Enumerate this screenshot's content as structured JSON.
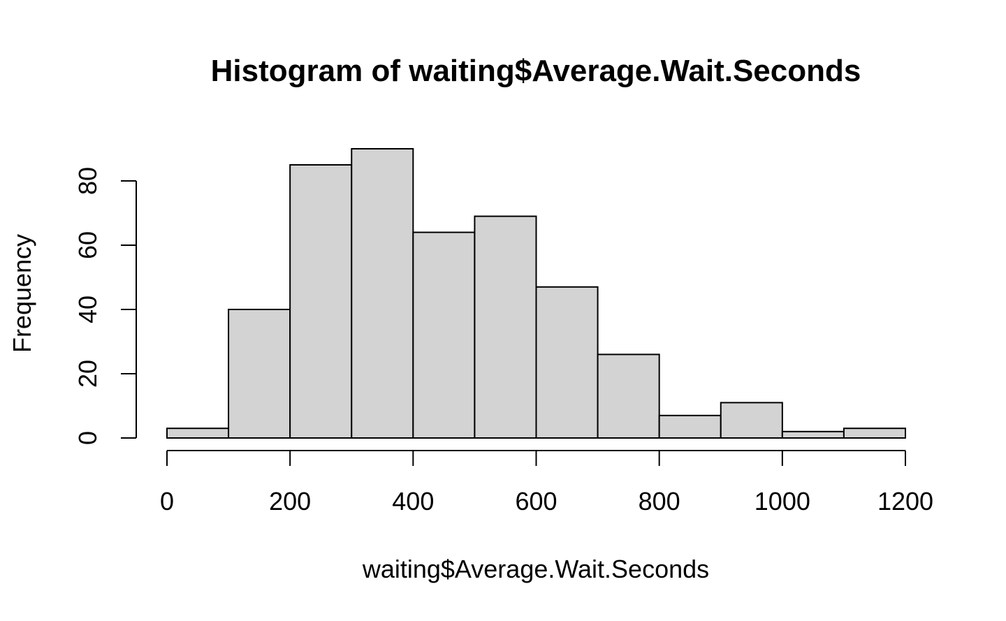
{
  "chart_data": {
    "type": "bar",
    "title": "Histogram of waiting$Average.Wait.Seconds",
    "xlabel": "waiting$Average.Wait.Seconds",
    "ylabel": "Frequency",
    "bins": [
      {
        "x0": 0,
        "x1": 100,
        "count": 3
      },
      {
        "x0": 100,
        "x1": 200,
        "count": 40
      },
      {
        "x0": 200,
        "x1": 300,
        "count": 85
      },
      {
        "x0": 300,
        "x1": 400,
        "count": 90
      },
      {
        "x0": 400,
        "x1": 500,
        "count": 64
      },
      {
        "x0": 500,
        "x1": 600,
        "count": 69
      },
      {
        "x0": 600,
        "x1": 700,
        "count": 47
      },
      {
        "x0": 700,
        "x1": 800,
        "count": 26
      },
      {
        "x0": 800,
        "x1": 900,
        "count": 7
      },
      {
        "x0": 900,
        "x1": 1000,
        "count": 11
      },
      {
        "x0": 1000,
        "x1": 1100,
        "count": 2
      },
      {
        "x0": 1100,
        "x1": 1200,
        "count": 3
      }
    ],
    "xticks": [
      "0",
      "200",
      "400",
      "600",
      "800",
      "1000",
      "1200"
    ],
    "yticks": [
      "0",
      "20",
      "40",
      "60",
      "80"
    ],
    "xlim": [
      0,
      1200
    ],
    "ylim": [
      0,
      80
    ],
    "grid": false,
    "bar_fill": "#d3d3d3",
    "bar_stroke": "#000000"
  }
}
